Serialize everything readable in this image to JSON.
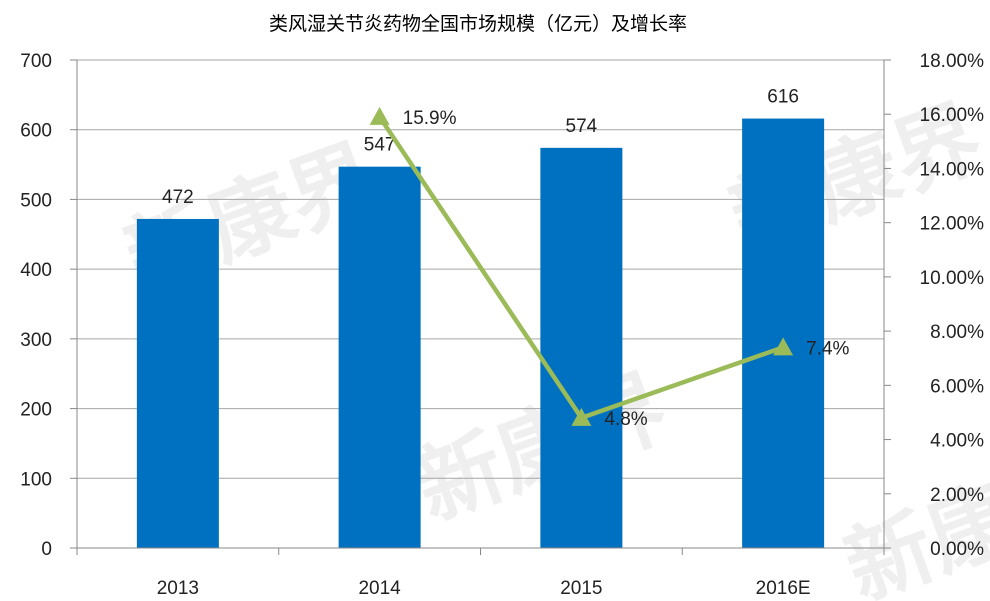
{
  "chart_data": {
    "type": "bar",
    "title": "类风湿关节炎药物全国市场规模（亿元）及增长率",
    "categories": [
      "2013",
      "2014",
      "2015",
      "2016E"
    ],
    "series": [
      {
        "name": "市场规模（亿元）",
        "type": "bar",
        "axis": "left",
        "values": [
          472,
          547,
          574,
          616
        ],
        "labels": [
          "472",
          "547",
          "574",
          "616"
        ],
        "color": "#0070C0"
      },
      {
        "name": "增长率",
        "type": "line",
        "axis": "right",
        "x": [
          "2014",
          "2015",
          "2016E"
        ],
        "values": [
          15.9,
          4.8,
          7.4
        ],
        "labels": [
          "15.9%",
          "4.8%",
          "7.4%"
        ],
        "color": "#9BBB59"
      }
    ],
    "left_axis": {
      "ylim": [
        0,
        700
      ],
      "ticks": [
        "0",
        "100",
        "200",
        "300",
        "400",
        "500",
        "600",
        "700"
      ]
    },
    "right_axis": {
      "ylim": [
        0,
        18
      ],
      "ticks": [
        "0.00%",
        "2.00%",
        "4.00%",
        "6.00%",
        "8.00%",
        "10.00%",
        "12.00%",
        "14.00%",
        "16.00%",
        "18.00%"
      ]
    },
    "grid": true,
    "legend": "none",
    "watermark": "新康界"
  }
}
